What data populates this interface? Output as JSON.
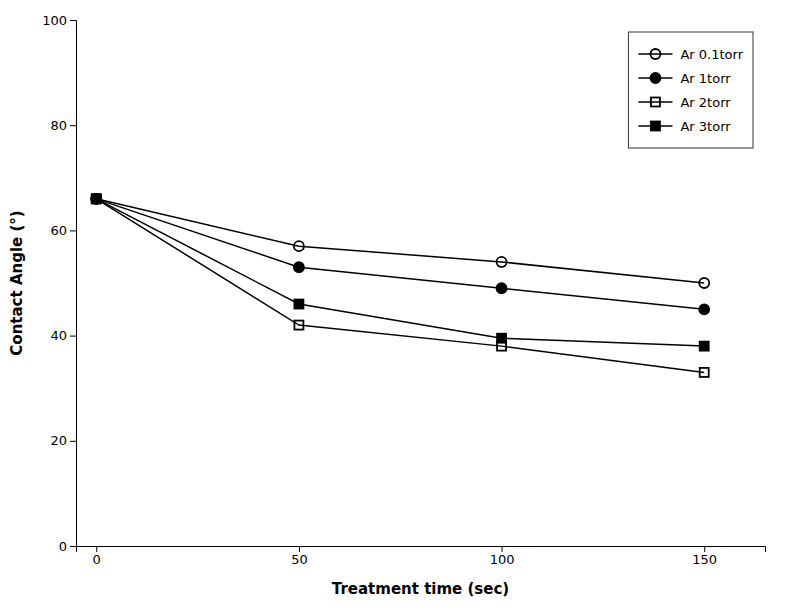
{
  "chart_data": {
    "type": "line",
    "x_label": "Treatment time (sec)",
    "y_label": "Contact Angle (°)",
    "x": [
      0,
      50,
      100,
      150
    ],
    "series": [
      {
        "name": "Ar 0.1torr",
        "values": [
          66,
          57,
          54,
          50
        ],
        "marker": "circle-open",
        "color": "black"
      },
      {
        "name": "Ar 1torr",
        "values": [
          66,
          53,
          49,
          45
        ],
        "marker": "circle",
        "color": "black"
      },
      {
        "name": "Ar 2torr",
        "values": [
          66,
          42,
          38,
          33
        ],
        "marker": "square-open",
        "color": "black"
      },
      {
        "name": "Ar 3torr",
        "values": [
          66,
          46,
          39.5,
          38
        ],
        "marker": "square",
        "color": "black"
      }
    ],
    "xlim": [
      -5,
      165
    ],
    "ylim": [
      0,
      100
    ],
    "xticks": [
      0,
      50,
      100,
      150
    ],
    "yticks": [
      0,
      20,
      40,
      60,
      80,
      100
    ],
    "grid": false,
    "legend": "upper right"
  }
}
